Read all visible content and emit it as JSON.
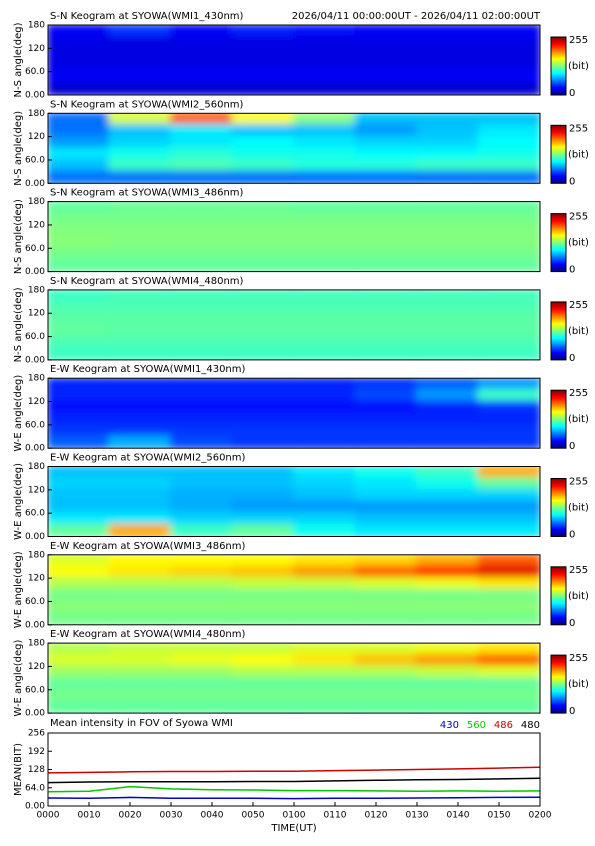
{
  "chart_data": [
    {
      "type": "heatmap",
      "title": "S-N Keogram at SYOWA(WMI1_430nm)",
      "subtitle": "2026/04/11 00:00:00UT - 2026/04/11 02:00:00UT",
      "ylabel": "N-S angle(deg)",
      "ylim": [
        0,
        180
      ],
      "yticks": [
        {
          "value": 0,
          "label": "0.00"
        },
        {
          "value": 60,
          "label": "60.0"
        },
        120,
        180
      ],
      "colorbar_ticks": [
        255,
        0
      ],
      "colorbar_label": "(bit)",
      "values": [
        [
          30,
          45,
          30,
          40,
          35,
          30,
          30,
          30
        ],
        [
          25,
          25,
          25,
          25,
          25,
          25,
          25,
          25
        ],
        [
          25,
          25,
          25,
          25,
          25,
          25,
          25,
          25
        ],
        [
          25,
          25,
          25,
          25,
          25,
          25,
          25,
          25
        ],
        [
          30,
          30,
          30,
          30,
          30,
          30,
          30,
          30
        ],
        [
          20,
          20,
          20,
          20,
          20,
          20,
          20,
          20
        ]
      ]
    },
    {
      "type": "heatmap",
      "title": "S-N Keogram at SYOWA(WMI2_560nm)",
      "ylabel": "N-S angle(deg)",
      "ylim": [
        0,
        180
      ],
      "yticks": [
        {
          "value": 0,
          "label": "0.00"
        },
        {
          "value": 60,
          "label": "60.0"
        },
        120,
        180
      ],
      "colorbar_ticks": [
        255,
        0
      ],
      "colorbar_label": "(bit)",
      "values": [
        [
          60,
          150,
          200,
          160,
          130,
          80,
          80,
          80
        ],
        [
          60,
          80,
          90,
          80,
          80,
          70,
          80,
          90
        ],
        [
          70,
          85,
          90,
          95,
          90,
          85,
          85,
          95
        ],
        [
          90,
          100,
          105,
          100,
          100,
          95,
          95,
          100
        ],
        [
          80,
          110,
          115,
          110,
          105,
          105,
          110,
          110
        ],
        [
          60,
          60,
          60,
          60,
          60,
          60,
          60,
          60
        ]
      ]
    },
    {
      "type": "heatmap",
      "title": "S-N Keogram at SYOWA(WMI3_486nm)",
      "ylabel": "N-S angle(deg)",
      "ylim": [
        0,
        180
      ],
      "yticks": [
        {
          "value": 0,
          "label": "0.00"
        },
        {
          "value": 60,
          "label": "60.0"
        },
        120,
        180
      ],
      "colorbar_ticks": [
        255,
        0
      ],
      "colorbar_label": "(bit)",
      "values": [
        [
          120,
          122,
          122,
          122,
          120,
          120,
          120,
          120
        ],
        [
          125,
          125,
          125,
          125,
          125,
          125,
          125,
          125
        ],
        [
          128,
          128,
          128,
          128,
          128,
          128,
          128,
          128
        ],
        [
          130,
          128,
          128,
          128,
          128,
          128,
          128,
          128
        ],
        [
          125,
          125,
          125,
          125,
          125,
          125,
          125,
          125
        ],
        [
          120,
          120,
          120,
          120,
          120,
          120,
          120,
          120
        ]
      ]
    },
    {
      "type": "heatmap",
      "title": "S-N Keogram at SYOWA(WMI4_480nm)",
      "ylabel": "N-S angle(deg)",
      "ylim": [
        0,
        180
      ],
      "yticks": [
        {
          "value": 0,
          "label": "0.00"
        },
        {
          "value": 60,
          "label": "60.0"
        },
        120,
        180
      ],
      "colorbar_ticks": [
        255,
        0
      ],
      "colorbar_label": "(bit)",
      "values": [
        [
          110,
          112,
          112,
          112,
          112,
          112,
          112,
          112
        ],
        [
          115,
          115,
          115,
          115,
          115,
          115,
          115,
          115
        ],
        [
          118,
          118,
          118,
          118,
          118,
          118,
          118,
          118
        ],
        [
          120,
          118,
          118,
          118,
          118,
          118,
          118,
          118
        ],
        [
          115,
          115,
          115,
          115,
          115,
          115,
          115,
          115
        ],
        [
          110,
          110,
          110,
          110,
          110,
          110,
          110,
          110
        ]
      ]
    },
    {
      "type": "heatmap",
      "title": "E-W Keogram at SYOWA(WMI1_430nm)",
      "ylabel": "W-E angle(deg)",
      "ylim": [
        0,
        180
      ],
      "yticks": [
        {
          "value": 0,
          "label": "0.00"
        },
        {
          "value": 60,
          "label": "60.0"
        },
        120,
        180
      ],
      "colorbar_ticks": [
        255,
        0
      ],
      "colorbar_label": "(bit)",
      "values": [
        [
          40,
          40,
          40,
          40,
          40,
          45,
          55,
          70
        ],
        [
          40,
          40,
          40,
          40,
          40,
          50,
          70,
          110
        ],
        [
          35,
          35,
          35,
          35,
          35,
          35,
          40,
          45
        ],
        [
          40,
          40,
          40,
          40,
          40,
          40,
          40,
          40
        ],
        [
          45,
          45,
          45,
          45,
          45,
          45,
          45,
          45
        ],
        [
          55,
          75,
          50,
          45,
          45,
          45,
          45,
          45
        ]
      ]
    },
    {
      "type": "heatmap",
      "title": "E-W Keogram at SYOWA(WMI2_560nm)",
      "ylabel": "W-E angle(deg)",
      "ylim": [
        0,
        180
      ],
      "yticks": [
        {
          "value": 0,
          "label": "0.00"
        },
        {
          "value": 60,
          "label": "60.0"
        },
        120,
        180
      ],
      "colorbar_ticks": [
        255,
        0
      ],
      "colorbar_label": "(bit)",
      "values": [
        [
          80,
          80,
          80,
          80,
          90,
          100,
          110,
          180
        ],
        [
          85,
          85,
          80,
          80,
          85,
          90,
          100,
          120
        ],
        [
          80,
          80,
          75,
          75,
          80,
          85,
          85,
          85
        ],
        [
          80,
          80,
          75,
          70,
          70,
          70,
          70,
          70
        ],
        [
          90,
          90,
          85,
          85,
          85,
          80,
          80,
          80
        ],
        [
          120,
          180,
          110,
          120,
          100,
          90,
          90,
          90
        ]
      ]
    },
    {
      "type": "heatmap",
      "title": "E-W Keogram at SYOWA(WMI3_486nm)",
      "ylabel": "W-E angle(deg)",
      "ylim": [
        0,
        180
      ],
      "yticks": [
        {
          "value": 0,
          "label": "0.00"
        },
        {
          "value": 60,
          "label": "60.0"
        },
        120,
        180
      ],
      "colorbar_ticks": [
        255,
        0
      ],
      "colorbar_label": "(bit)",
      "values": [
        [
          150,
          160,
          160,
          160,
          165,
          170,
          180,
          200
        ],
        [
          160,
          165,
          170,
          175,
          185,
          200,
          215,
          230
        ],
        [
          140,
          140,
          140,
          145,
          145,
          150,
          155,
          165
        ],
        [
          125,
          125,
          125,
          125,
          125,
          125,
          125,
          125
        ],
        [
          130,
          130,
          130,
          130,
          130,
          130,
          130,
          130
        ],
        [
          125,
          125,
          125,
          125,
          125,
          125,
          125,
          125
        ]
      ]
    },
    {
      "type": "heatmap",
      "title": "E-W Keogram at SYOWA(WMI4_480nm)",
      "ylabel": "W-E angle(deg)",
      "ylim": [
        0,
        180
      ],
      "yticks": [
        {
          "value": 0,
          "label": "0.00"
        },
        {
          "value": 60,
          "label": "60.0"
        },
        120,
        180
      ],
      "colorbar_ticks": [
        255,
        0
      ],
      "colorbar_label": "(bit)",
      "values": [
        [
          140,
          145,
          145,
          145,
          150,
          150,
          155,
          165
        ],
        [
          150,
          150,
          155,
          160,
          165,
          175,
          185,
          200
        ],
        [
          135,
          135,
          135,
          140,
          140,
          140,
          145,
          150
        ],
        [
          120,
          120,
          120,
          120,
          120,
          120,
          120,
          120
        ],
        [
          125,
          125,
          125,
          125,
          125,
          125,
          125,
          125
        ],
        [
          120,
          120,
          120,
          120,
          120,
          120,
          120,
          120
        ]
      ]
    },
    {
      "type": "line",
      "title": "Mean intensity in FOV of Syowa WMI",
      "xlabel": "TIME(UT)",
      "ylabel": "MEAN(BIT)",
      "x": [
        0,
        10,
        20,
        30,
        40,
        50,
        60,
        70,
        80,
        90,
        100,
        110,
        120
      ],
      "xlim": [
        0,
        120
      ],
      "xticks": [
        {
          "value": 0,
          "label": "0000"
        },
        {
          "value": 10,
          "label": "0010"
        },
        {
          "value": 20,
          "label": "0020"
        },
        {
          "value": 30,
          "label": "0030"
        },
        {
          "value": 40,
          "label": "0040"
        },
        {
          "value": 50,
          "label": "0050"
        },
        {
          "value": 60,
          "label": "0100"
        },
        {
          "value": 70,
          "label": "0110"
        },
        {
          "value": 80,
          "label": "0120"
        },
        {
          "value": 90,
          "label": "0130"
        },
        {
          "value": 100,
          "label": "0140"
        },
        {
          "value": 110,
          "label": "0150"
        },
        {
          "value": 120,
          "label": "0200"
        }
      ],
      "ylim": [
        0,
        256
      ],
      "yticks": [
        {
          "value": 0,
          "label": "0.00"
        },
        {
          "value": 64,
          "label": "64.0"
        },
        128,
        192,
        256
      ],
      "series": [
        {
          "name": "430",
          "color": "#0000c8",
          "values": [
            28,
            27,
            30,
            27,
            27,
            27,
            26,
            27,
            27,
            28,
            29,
            30,
            31
          ]
        },
        {
          "name": "560",
          "color": "#00c800",
          "values": [
            50,
            52,
            68,
            60,
            57,
            56,
            54,
            54,
            53,
            52,
            53,
            52,
            53
          ]
        },
        {
          "name": "486",
          "color": "#d00000",
          "values": [
            116,
            118,
            120,
            121,
            121,
            122,
            122,
            124,
            126,
            128,
            130,
            133,
            136
          ]
        },
        {
          "name": "480",
          "color": "#000000",
          "values": [
            82,
            84,
            85,
            85,
            85,
            86,
            86,
            88,
            90,
            92,
            93,
            95,
            97
          ]
        }
      ]
    }
  ]
}
